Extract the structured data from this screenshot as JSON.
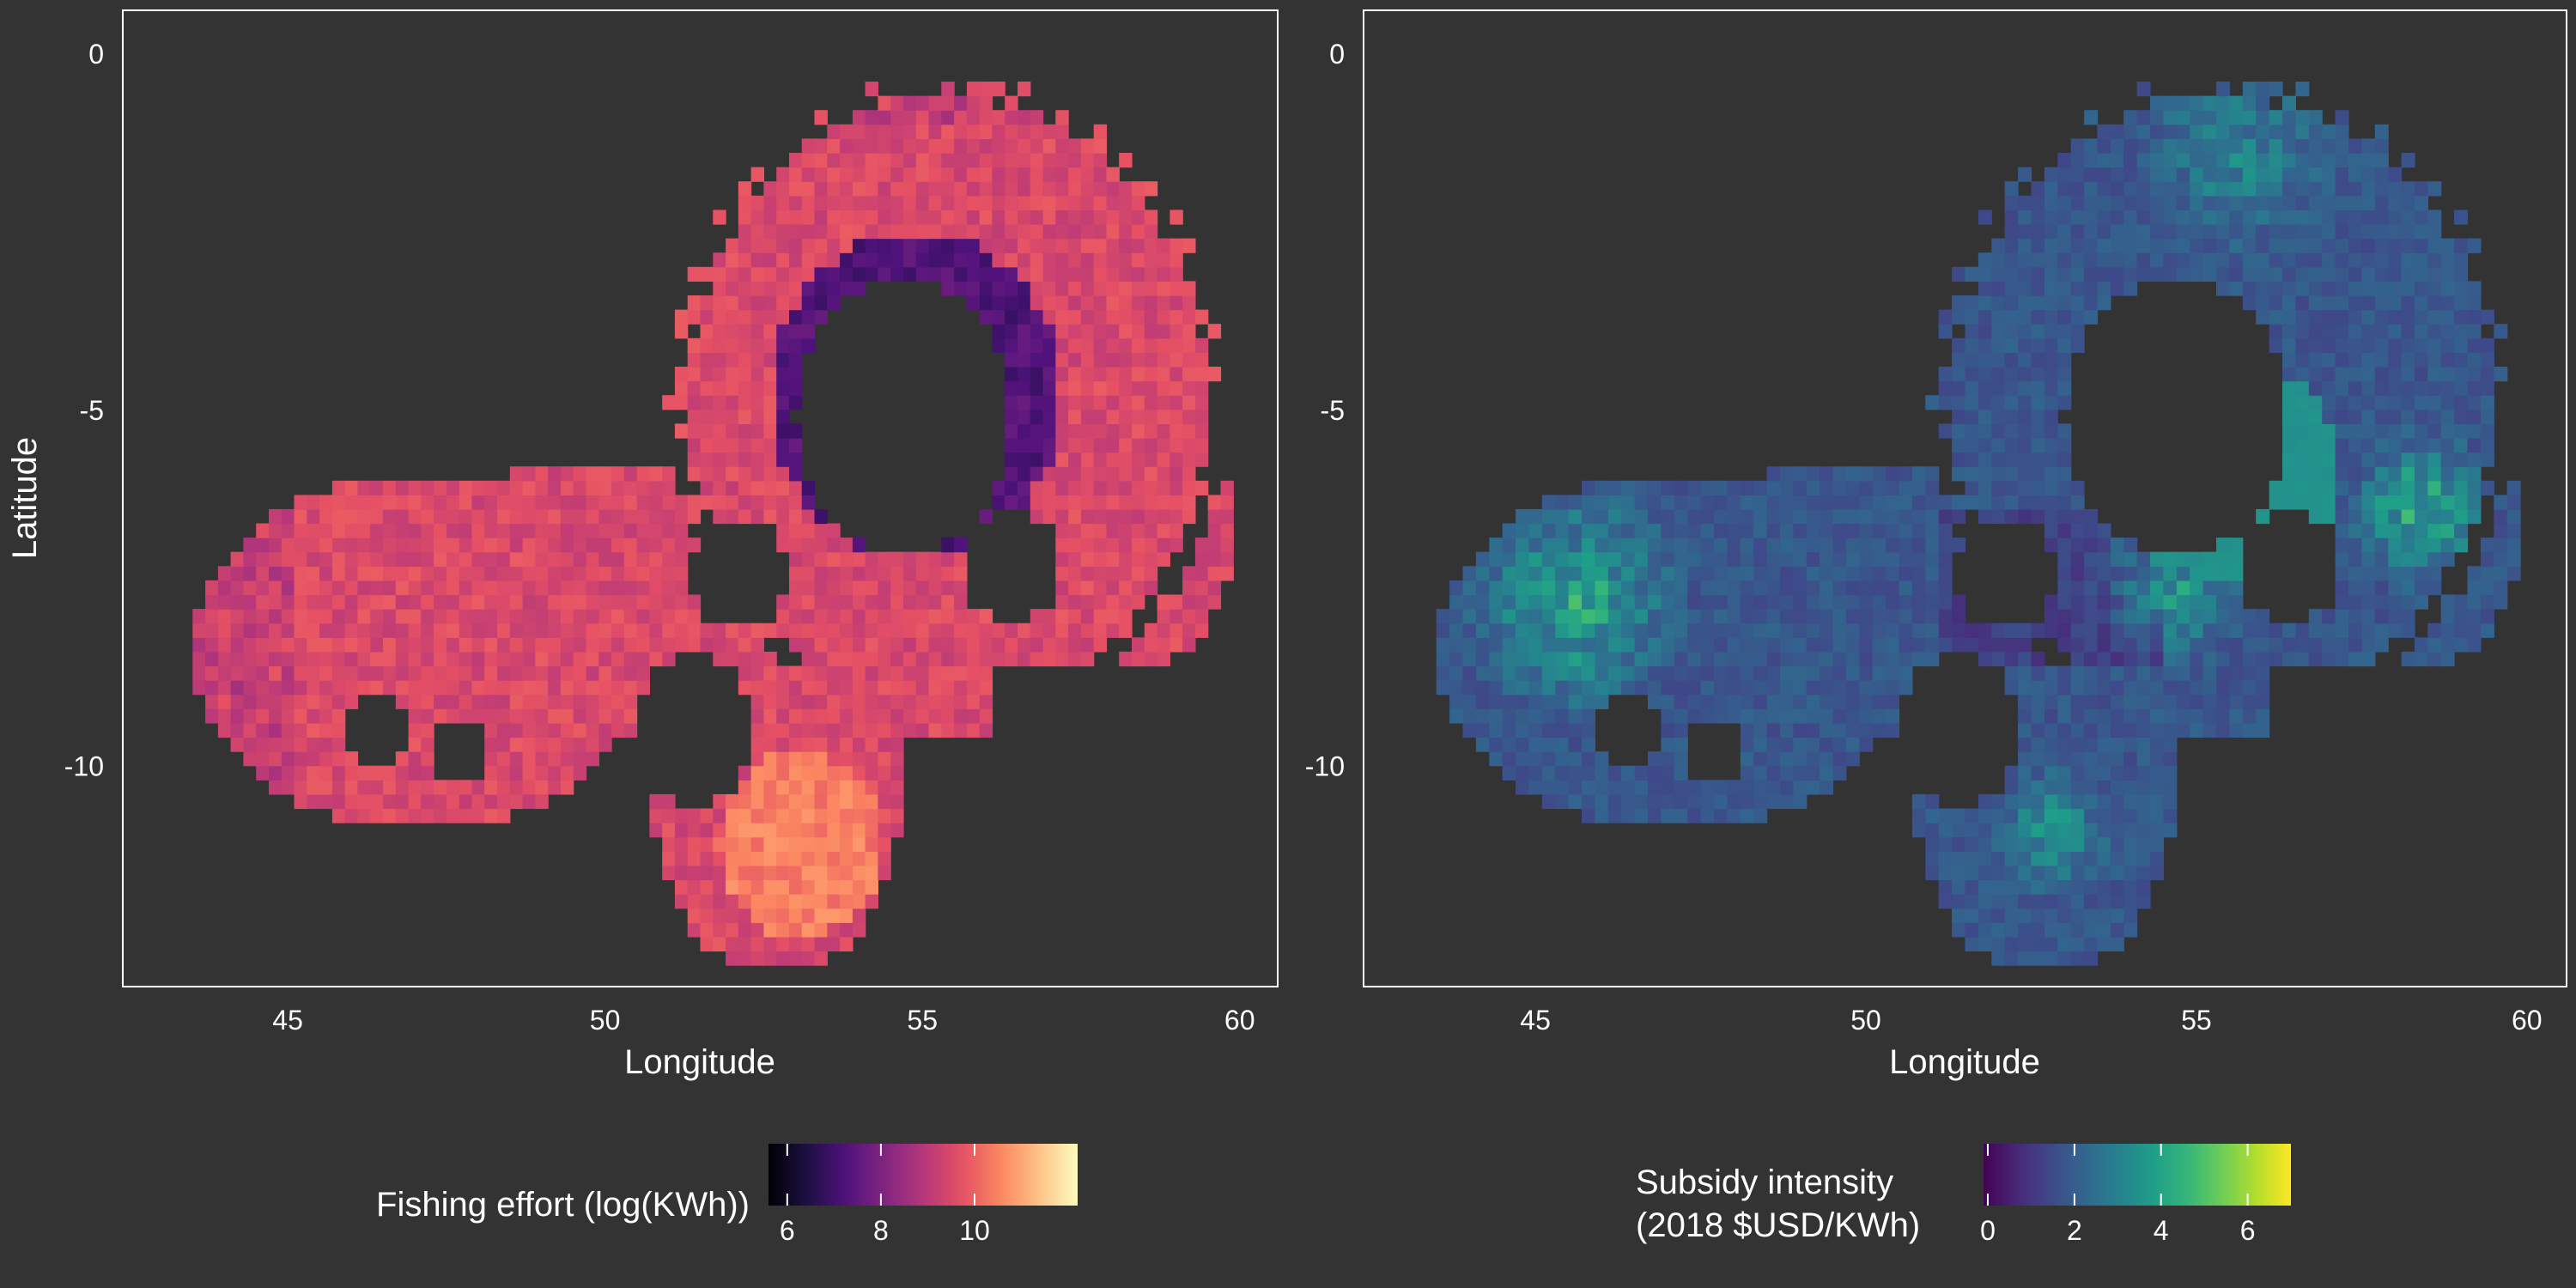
{
  "chart_data": [
    {
      "type": "heatmap",
      "title": "",
      "xlabel": "Longitude",
      "ylabel": "Latitude",
      "xlim": [
        42.4,
        60.6
      ],
      "ylim": [
        -13.1,
        0.6
      ],
      "x_ticks": [
        45,
        50,
        55,
        60
      ],
      "x_tick_labels": [
        "45",
        "50",
        "55",
        "60"
      ],
      "y_ticks": [
        0,
        -5,
        -10
      ],
      "y_tick_labels": [
        "0",
        "-5",
        "-10"
      ],
      "grid": false,
      "cell_size_deg": 0.1,
      "legend": {
        "title": "Fishing effort (log(KWh))",
        "placement": "bottom",
        "colormap": "magma",
        "range": [
          5.6,
          12.2
        ],
        "ticks": [
          6,
          8,
          10
        ],
        "tick_labels": [
          "6",
          "8",
          "10"
        ]
      },
      "region_description_points": {
        "typical_value": 10,
        "high_value_area": [
          53.0,
          -11.2
        ],
        "low_value_area": [
          54.8,
          -4.9
        ]
      }
    },
    {
      "type": "heatmap",
      "title": "",
      "xlabel": "Longitude",
      "ylabel": "",
      "xlim": [
        42.4,
        60.6
      ],
      "ylim": [
        -13.1,
        0.6
      ],
      "x_ticks": [
        45,
        50,
        55,
        60
      ],
      "x_tick_labels": [
        "45",
        "50",
        "55",
        "60"
      ],
      "y_ticks": [
        0,
        -5,
        -10
      ],
      "y_tick_labels": [
        "0",
        "-5",
        "-10"
      ],
      "grid": false,
      "cell_size_deg": 0.1,
      "legend": {
        "title_lines": [
          "Subsidy intensity",
          "(2018 $USD/KWh)"
        ],
        "placement": "bottom",
        "colormap": "viridis",
        "range": [
          -0.1,
          7.0
        ],
        "ticks": [
          0,
          2,
          4,
          6
        ],
        "tick_labels": [
          "0",
          "2",
          "4",
          "6"
        ]
      },
      "region_description_points": {
        "typical_value": 2,
        "high_value_area": [
          58.3,
          -6.5
        ],
        "high_value_area_2": [
          45.5,
          -7.8
        ]
      }
    }
  ],
  "colors": {
    "background": "#333333",
    "text": "#ffffff",
    "panel_border": "#ffffff"
  }
}
